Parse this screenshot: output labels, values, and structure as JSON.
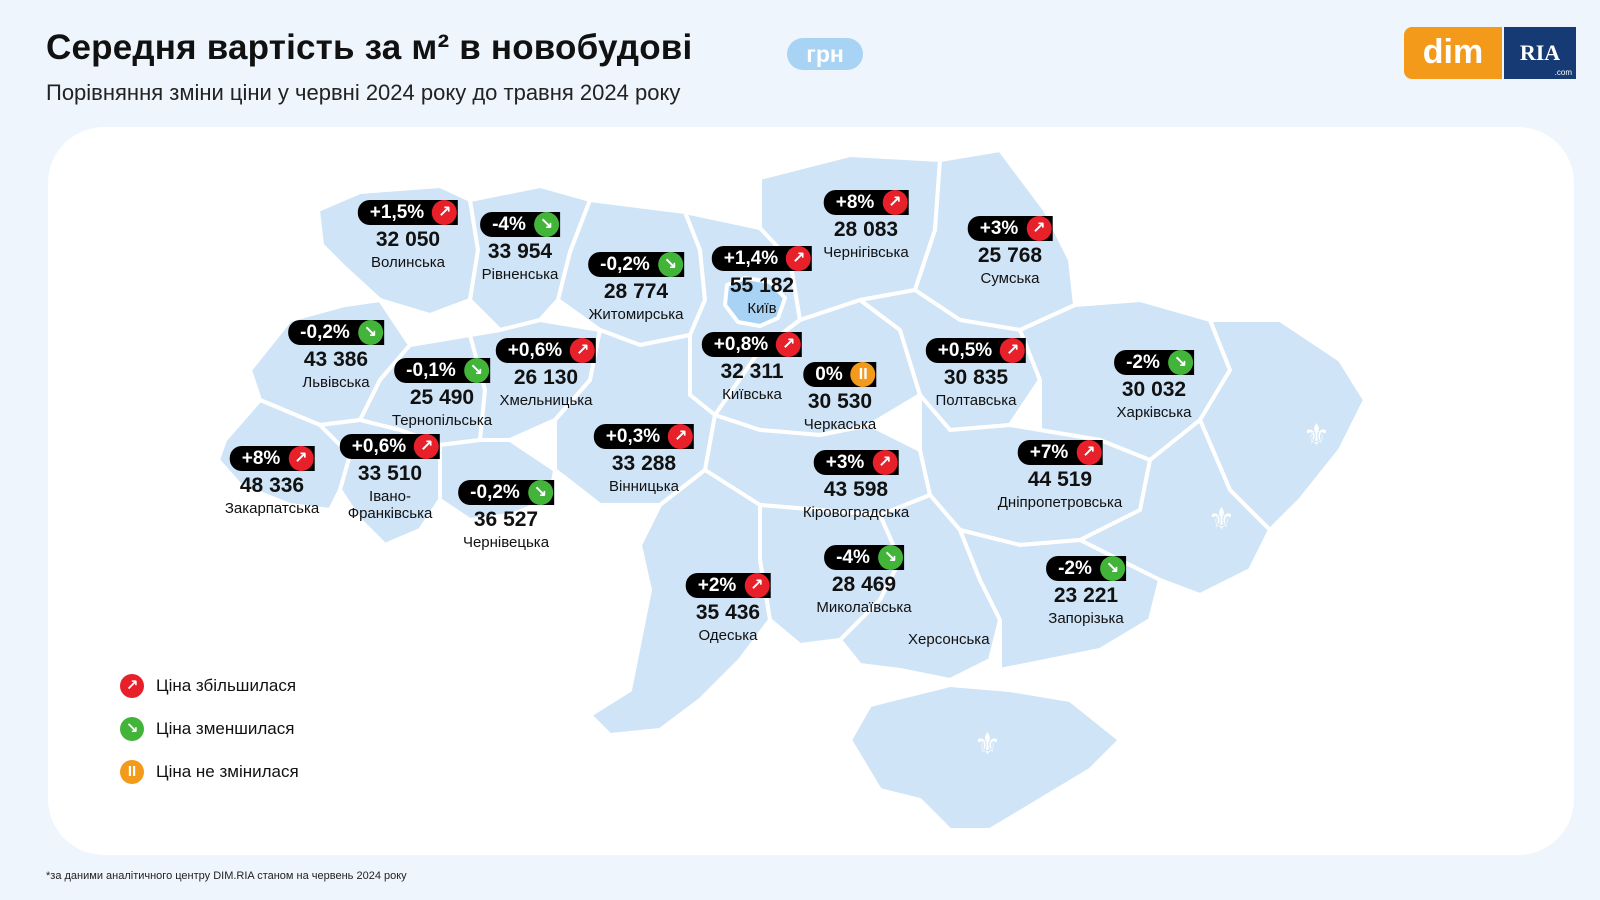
{
  "header": {
    "title": "Середня вартість за м² в новобудові",
    "unit_badge": "грн",
    "subtitle": "Порівняння зміни ціни у червні 2024 року до травня 2024 року"
  },
  "logo": {
    "left": "dim",
    "right": "RIA",
    "right_sub": ".com"
  },
  "colors": {
    "up": "#e8202a",
    "down": "#43b43a",
    "same": "#f39a1b",
    "map_fill": "#cfe4f7",
    "background": "#eef5fc"
  },
  "icons": {
    "up": "arrow-up-right-icon",
    "down": "arrow-down-right-icon",
    "same": "pause-icon"
  },
  "regions": [
    {
      "name": "Волинська",
      "change": "+1,5%",
      "trend": "up",
      "price": "32 050"
    },
    {
      "name": "Рівненська",
      "change": "-4%",
      "trend": "down",
      "price": "33 954"
    },
    {
      "name": "Житомирська",
      "change": "-0,2%",
      "trend": "down",
      "price": "28 774"
    },
    {
      "name": "Київ",
      "change": "+1,4%",
      "trend": "up",
      "price": "55 182"
    },
    {
      "name": "Чернігівська",
      "change": "+8%",
      "trend": "up",
      "price": "28 083"
    },
    {
      "name": "Сумська",
      "change": "+3%",
      "trend": "up",
      "price": "25 768"
    },
    {
      "name": "Львівська",
      "change": "-0,2%",
      "trend": "down",
      "price": "43 386"
    },
    {
      "name": "Тернопільська",
      "change": "-0,1%",
      "trend": "down",
      "price": "25 490"
    },
    {
      "name": "Хмельницька",
      "change": "+0,6%",
      "trend": "up",
      "price": "26 130"
    },
    {
      "name": "Київська",
      "change": "+0,8%",
      "trend": "up",
      "price": "32 311"
    },
    {
      "name": "Черкаська",
      "change": "0%",
      "trend": "same",
      "price": "30 530"
    },
    {
      "name": "Полтавська",
      "change": "+0,5%",
      "trend": "up",
      "price": "30 835"
    },
    {
      "name": "Харківська",
      "change": "-2%",
      "trend": "down",
      "price": "30 032"
    },
    {
      "name": "Закарпатська",
      "change": "+8%",
      "trend": "up",
      "price": "48 336"
    },
    {
      "name": "Івано-\nФранківська",
      "change": "+0,6%",
      "trend": "up",
      "price": "33 510"
    },
    {
      "name": "Чернівецька",
      "change": "-0,2%",
      "trend": "down",
      "price": "36 527"
    },
    {
      "name": "Вінницька",
      "change": "+0,3%",
      "trend": "up",
      "price": "33 288"
    },
    {
      "name": "Кіровоградська",
      "change": "+3%",
      "trend": "up",
      "price": "43 598"
    },
    {
      "name": "Дніпропетровська",
      "change": "+7%",
      "trend": "up",
      "price": "44 519"
    },
    {
      "name": "Миколаївська",
      "change": "-4%",
      "trend": "down",
      "price": "28 469"
    },
    {
      "name": "Одеська",
      "change": "+2%",
      "trend": "up",
      "price": "35 436"
    },
    {
      "name": "Запорізька",
      "change": "-2%",
      "trend": "down",
      "price": "23 221"
    }
  ],
  "unlabeled_regions": [
    {
      "name": "Херсонська"
    }
  ],
  "legend": [
    {
      "label": "Ціна збільшилася",
      "trend": "up"
    },
    {
      "label": "Ціна зменшилася",
      "trend": "down"
    },
    {
      "label": "Ціна не змінилася",
      "trend": "same"
    }
  ],
  "footnote": "*за даними аналітичного центру DIM.RIA станом на червень 2024 року"
}
